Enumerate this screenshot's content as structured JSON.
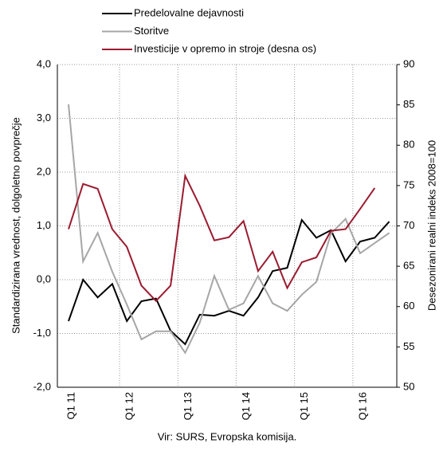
{
  "chart_data": {
    "type": "line",
    "source": "Vir: SURS, Evropska komisija.",
    "ylabel": "Standardizirana vrednost, dolgoletno povprečje",
    "y2label": "Desezonirani realni indeks 2008=100",
    "categories": [
      "Q1 11",
      null,
      null,
      null,
      "Q1 12",
      null,
      null,
      null,
      "Q1 13",
      null,
      null,
      null,
      "Q1 14",
      null,
      null,
      null,
      "Q1 15",
      null,
      null,
      null,
      "Q1 16",
      null,
      null
    ],
    "series": [
      {
        "name": "Predelovalne dejavnosti",
        "color": "#000000",
        "values": [
          -0.77,
          0.0,
          -0.33,
          -0.08,
          -0.77,
          -0.4,
          -0.35,
          -0.95,
          -1.2,
          -0.65,
          -0.67,
          -0.58,
          -0.67,
          -0.33,
          0.16,
          0.22,
          1.11,
          0.78,
          0.92,
          0.34,
          0.71,
          0.78,
          1.08
        ]
      },
      {
        "name": "Storitve",
        "color": "#a6a6a6",
        "values": [
          3.26,
          0.34,
          0.87,
          0.15,
          -0.46,
          -1.11,
          -0.96,
          -0.96,
          -1.36,
          -0.8,
          0.07,
          -0.56,
          -0.44,
          0.07,
          -0.44,
          -0.58,
          -0.28,
          -0.04,
          0.86,
          1.13,
          0.49,
          0.68,
          0.87
        ]
      },
      {
        "name": "Investicije v opremo in stroje (desna os)",
        "color": "#9b1b30",
        "axis": "y2",
        "values": [
          69.6,
          75.2,
          74.6,
          69.6,
          67.4,
          62.6,
          60.7,
          62.6,
          76.2,
          72.5,
          68.2,
          68.6,
          70.6,
          64.4,
          66.8,
          62.3,
          65.5,
          66.1,
          69.4,
          69.6,
          72.1,
          74.7,
          null
        ]
      }
    ],
    "ylim": [
      -2,
      4
    ],
    "yticks": [
      {
        "value": -2,
        "label": "-2,0"
      },
      {
        "value": -1,
        "label": "-1,0"
      },
      {
        "value": 0,
        "label": "0,0"
      },
      {
        "value": 1,
        "label": "1,0"
      },
      {
        "value": 2,
        "label": "2,0"
      },
      {
        "value": 3,
        "label": "3,0"
      },
      {
        "value": 4,
        "label": "4,0"
      }
    ],
    "y2lim": [
      50,
      90
    ],
    "y2ticks": [
      50,
      55,
      60,
      65,
      70,
      75,
      80,
      85,
      90
    ],
    "grid": true
  }
}
